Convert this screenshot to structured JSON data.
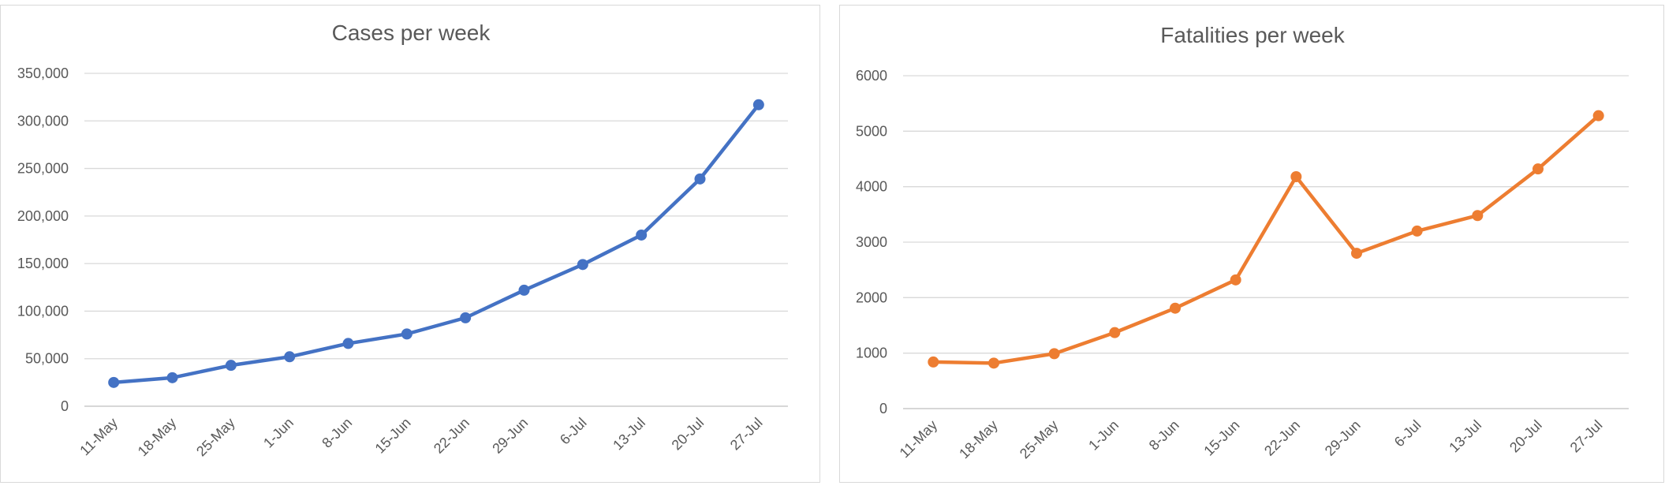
{
  "chart_data": [
    {
      "type": "line",
      "title": "Cases per week",
      "xlabel": "",
      "ylabel": "",
      "categories": [
        "11-May",
        "18-May",
        "25-May",
        "1-Jun",
        "8-Jun",
        "15-Jun",
        "22-Jun",
        "29-Jun",
        "6-Jul",
        "13-Jul",
        "20-Jul",
        "27-Jul"
      ],
      "yticks": [
        "0",
        "50,000",
        "100,000",
        "150,000",
        "200,000",
        "250,000",
        "300,000",
        "350,000"
      ],
      "ylim": [
        0,
        350000
      ],
      "grid": true,
      "color": "#4472C4",
      "series": [
        {
          "values": [
            25000,
            30000,
            43000,
            52000,
            66000,
            76000,
            93000,
            122000,
            149000,
            180000,
            239000,
            317000
          ]
        }
      ]
    },
    {
      "type": "line",
      "title": "Fatalities per week",
      "xlabel": "",
      "ylabel": "",
      "categories": [
        "11-May",
        "18-May",
        "25-May",
        "1-Jun",
        "8-Jun",
        "15-Jun",
        "22-Jun",
        "29-Jun",
        "6-Jul",
        "13-Jul",
        "20-Jul",
        "27-Jul"
      ],
      "yticks": [
        "0",
        "1000",
        "2000",
        "3000",
        "4000",
        "5000",
        "6000"
      ],
      "ylim": [
        0,
        6000
      ],
      "grid": true,
      "color": "#ED7D31",
      "series": [
        {
          "values": [
            840,
            820,
            990,
            1370,
            1810,
            2320,
            4180,
            2800,
            3200,
            3480,
            4320,
            5280
          ]
        }
      ]
    }
  ]
}
